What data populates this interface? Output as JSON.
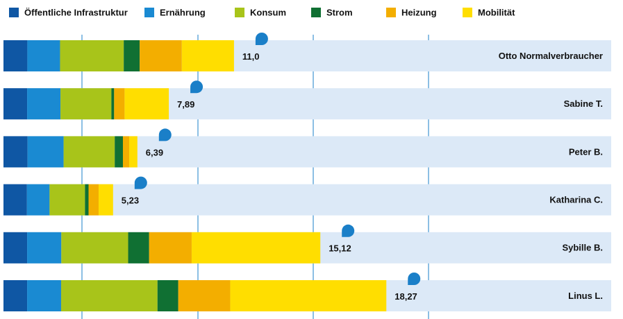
{
  "chart_data": {
    "type": "stacked-bar",
    "orientation": "horizontal",
    "categories": [
      "Otto Normalverbraucher",
      "Sabine T.",
      "Peter B.",
      "Katharina C.",
      "Sybille B.",
      "Linus L."
    ],
    "series": [
      {
        "name": "Öffentliche Infrastruktur",
        "color": "#0f57a4",
        "values": [
          1.14,
          1.13,
          1.15,
          1.12,
          1.13,
          1.13
        ]
      },
      {
        "name": "Ernährung",
        "color": "#1a8ad2",
        "values": [
          1.56,
          1.59,
          1.72,
          1.08,
          1.63,
          1.62
        ]
      },
      {
        "name": "Konsum",
        "color": "#a8c41a",
        "values": [
          3.04,
          2.43,
          2.44,
          1.69,
          3.19,
          4.6
        ]
      },
      {
        "name": "Strom",
        "color": "#107033",
        "values": [
          0.76,
          0.13,
          0.39,
          0.17,
          1.0,
          0.99
        ]
      },
      {
        "name": "Heizung",
        "color": "#f3ae00",
        "values": [
          2.01,
          0.5,
          0.3,
          0.48,
          2.03,
          2.48
        ]
      },
      {
        "name": "Mobilität",
        "color": "#ffde00",
        "values": [
          2.49,
          2.11,
          0.39,
          0.69,
          6.14,
          7.45
        ]
      }
    ],
    "totals": [
      11.0,
      7.89,
      6.39,
      5.23,
      15.12,
      18.27
    ],
    "total_labels": [
      "11,0",
      "7,89",
      "6,39",
      "5,23",
      "15,12",
      "18,27"
    ],
    "xlim": [
      0,
      29
    ],
    "legend": "top"
  }
}
